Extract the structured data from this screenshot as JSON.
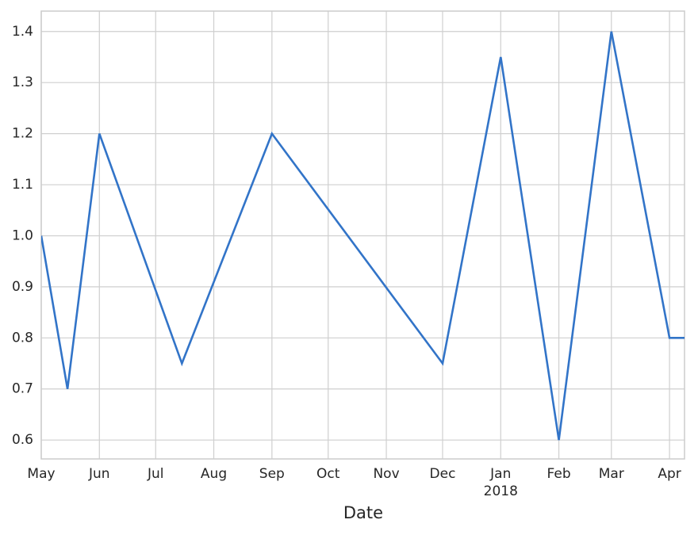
{
  "chart_data": {
    "type": "line",
    "xlabel": "Date",
    "x": [
      "2017-05-01",
      "2017-05-15",
      "2017-06-01",
      "2017-07-15",
      "2017-09-01",
      "2017-12-01",
      "2018-01-01",
      "2018-02-01",
      "2018-03-01",
      "2018-04-01",
      "2018-04-09"
    ],
    "values": [
      1.0,
      0.7,
      1.2,
      0.75,
      1.2,
      0.75,
      1.35,
      0.6,
      1.4,
      0.8,
      0.8
    ],
    "color": "#3274c8",
    "xlim": [
      "2017-05-01",
      "2018-04-09"
    ],
    "xticks": [
      {
        "value": "2017-05-01",
        "label": "May"
      },
      {
        "value": "2017-06-01",
        "label": "Jun"
      },
      {
        "value": "2017-07-01",
        "label": "Jul"
      },
      {
        "value": "2017-08-01",
        "label": "Aug"
      },
      {
        "value": "2017-09-01",
        "label": "Sep"
      },
      {
        "value": "2017-10-01",
        "label": "Oct"
      },
      {
        "value": "2017-11-01",
        "label": "Nov"
      },
      {
        "value": "2017-12-01",
        "label": "Dec"
      },
      {
        "value": "2018-01-01",
        "label": "Jan"
      },
      {
        "value": "2018-02-01",
        "label": "Feb"
      },
      {
        "value": "2018-03-01",
        "label": "Mar"
      },
      {
        "value": "2018-04-01",
        "label": "Apr"
      }
    ],
    "x_year_labels": [
      {
        "value": "2018-01-01",
        "label": "2018"
      }
    ],
    "ylim": [
      0.563,
      1.44
    ],
    "yticks": [
      0.6,
      0.7,
      0.8,
      0.9,
      {
        "value": 1,
        "label": "1.0"
      },
      1.1,
      1.2,
      1.3,
      1.4
    ],
    "grid": true
  }
}
